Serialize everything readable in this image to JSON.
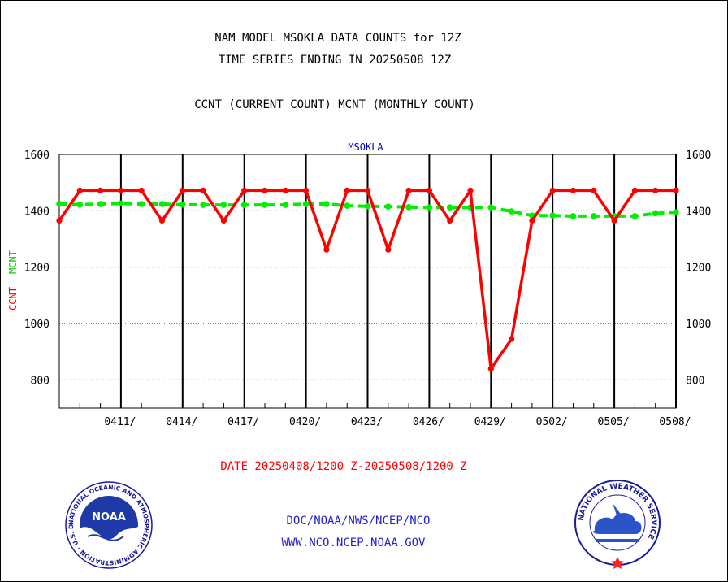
{
  "header": {
    "line1": "NAM MODEL MSOKLA DATA COUNTS for 12Z",
    "line2": "TIME SERIES ENDING IN 20250508 12Z",
    "line3": "CCNT (CURRENT COUNT) MCNT (MONTHLY COUNT)"
  },
  "footer": {
    "date_range": "DATE 20250408/1200 Z-20250508/1200 Z",
    "org_path": "DOC/NOAA/NWS/NCEP/NCO",
    "website": "WWW.NCO.NCEP.NOAA.GOV"
  },
  "logos": {
    "noaa_center": "NOAA",
    "noaa_ring": "NATIONAL OCEANIC AND ATMOSPHERIC ADMINISTRATION · U.S. DEPARTMENT OF COMMERCE ·",
    "nws_ring": "NATIONAL WEATHER SERVICE"
  },
  "colors": {
    "ccnt": "#ff0000",
    "mcnt": "#00ee00",
    "station": "#0000cc",
    "footer_text": "#2222cc"
  },
  "chart_data": {
    "type": "line",
    "title": "MSOKLA",
    "ylabel": [
      "CCNT",
      "MCNT"
    ],
    "ylim": [
      700,
      1600
    ],
    "yticks": [
      800,
      1000,
      1200,
      1400,
      1600
    ],
    "xlim": [
      0,
      30
    ],
    "xtick_labels": [
      "0411/",
      "0414/",
      "0417/",
      "0420/",
      "0423/",
      "0426/",
      "0429/",
      "0502/",
      "0505/",
      "0508/"
    ],
    "grid": true,
    "series": [
      {
        "name": "CCNT",
        "x": [
          0,
          1,
          2,
          3,
          4,
          5,
          6,
          7,
          8,
          9,
          10,
          11,
          12,
          13,
          14,
          15,
          16,
          17,
          18,
          19,
          20,
          21,
          22,
          23,
          24,
          25,
          26,
          27,
          28,
          29,
          30
        ],
        "values": [
          1365,
          1472,
          1472,
          1472,
          1472,
          1365,
          1472,
          1472,
          1365,
          1472,
          1472,
          1472,
          1472,
          1262,
          1472,
          1472,
          1262,
          1472,
          1472,
          1365,
          1472,
          840,
          945,
          1365,
          1472,
          1472,
          1472,
          1365,
          1472,
          1472,
          1472
        ]
      },
      {
        "name": "MCNT",
        "x": [
          0,
          1,
          2,
          3,
          4,
          5,
          6,
          7,
          8,
          9,
          10,
          11,
          12,
          13,
          14,
          15,
          16,
          17,
          18,
          19,
          20,
          21,
          22,
          23,
          24,
          25,
          26,
          27,
          28,
          29,
          30
        ],
        "values": [
          1425,
          1422,
          1424,
          1426,
          1424,
          1424,
          1422,
          1421,
          1421,
          1421,
          1421,
          1421,
          1424,
          1424,
          1418,
          1416,
          1415,
          1413,
          1412,
          1412,
          1412,
          1412,
          1398,
          1383,
          1383,
          1381,
          1381,
          1381,
          1381,
          1391,
          1395
        ]
      }
    ]
  }
}
